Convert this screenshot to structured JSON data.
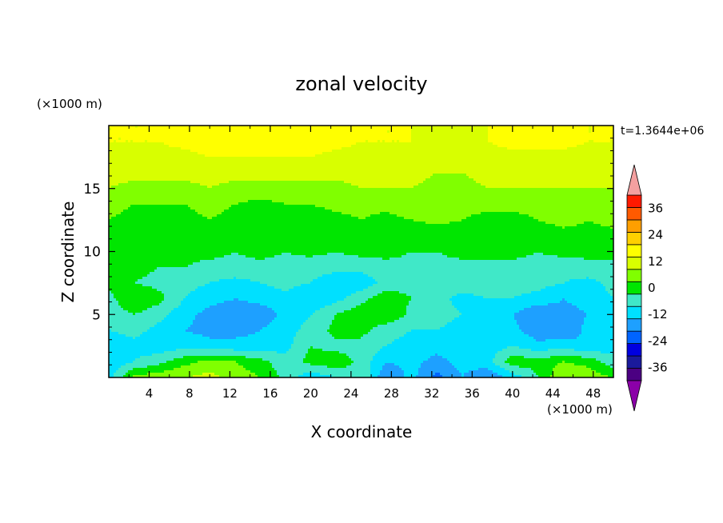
{
  "chart_data": {
    "type": "heatmap",
    "title": "zonal velocity",
    "xlabel": "X coordinate",
    "ylabel": "Z coordinate",
    "x_unit_label": "(×1000 m)",
    "y_unit_label": "(×1000 m)",
    "time_label": "t=1.3644e+06",
    "xlim": [
      0,
      50
    ],
    "ylim": [
      0,
      20
    ],
    "xticks": [
      4,
      8,
      12,
      16,
      20,
      24,
      28,
      32,
      36,
      40,
      44,
      48
    ],
    "yticks": [
      5,
      10,
      15
    ],
    "colorbar": {
      "levels": [
        -42,
        -36,
        -30,
        -24,
        -18,
        -12,
        -6,
        0,
        6,
        12,
        18,
        24,
        30,
        36,
        42
      ],
      "tick_labels": [
        "-36",
        "-24",
        "-12",
        "0",
        "12",
        "24",
        "36"
      ],
      "tick_values": [
        -36,
        -24,
        -12,
        0,
        12,
        24,
        36
      ],
      "colors": [
        "#4b0082",
        "#1a1a9c",
        "#0000e0",
        "#0064ff",
        "#1ea0ff",
        "#00e0ff",
        "#40e8c8",
        "#00e600",
        "#80ff00",
        "#d8ff00",
        "#ffff00",
        "#ffd000",
        "#ff9f00",
        "#ff5a00",
        "#ff1a00"
      ],
      "under_color": "#8b00a8",
      "over_color": "#f4a0a0"
    },
    "grid": {
      "x": [
        0,
        2.5,
        5,
        7.5,
        10,
        12.5,
        15,
        17.5,
        20,
        22.5,
        25,
        27.5,
        30,
        32.5,
        35,
        37.5,
        40,
        42.5,
        45,
        47.5,
        50
      ],
      "z": [
        0,
        1.25,
        2.5,
        3.75,
        5,
        6.25,
        7.5,
        8.75,
        10,
        11.25,
        12.5,
        13.75,
        15,
        16.25,
        17.5,
        18.75,
        20
      ],
      "values": [
        [
          -8,
          8,
          10,
          12,
          14,
          10,
          6,
          -2,
          -10,
          -6,
          0,
          -18,
          -10,
          -20,
          -12,
          -18,
          -10,
          0,
          12,
          10,
          6
        ],
        [
          -12,
          -6,
          -2,
          4,
          8,
          6,
          2,
          -4,
          2,
          4,
          -2,
          -12,
          -10,
          -14,
          -10,
          -8,
          4,
          2,
          6,
          4,
          -4
        ],
        [
          -10,
          -8,
          -10,
          -8,
          -10,
          -10,
          -10,
          -8,
          0,
          -2,
          -2,
          -6,
          -8,
          -10,
          -8,
          -10,
          -6,
          -10,
          -8,
          -12,
          -8
        ],
        [
          -6,
          -4,
          -8,
          -12,
          -14,
          -14,
          -12,
          -8,
          -4,
          2,
          2,
          -4,
          -6,
          -6,
          -8,
          -8,
          -10,
          -16,
          -18,
          -10,
          -8
        ],
        [
          -4,
          0,
          -4,
          -10,
          -14,
          -16,
          -16,
          -10,
          -6,
          0,
          4,
          6,
          -2,
          -4,
          -6,
          -8,
          -12,
          -18,
          -14,
          -12,
          -6
        ],
        [
          -2,
          6,
          2,
          -6,
          -10,
          -12,
          -10,
          -8,
          -12,
          -8,
          -2,
          4,
          0,
          -4,
          -8,
          -6,
          -6,
          -8,
          -12,
          -10,
          -6
        ],
        [
          2,
          0,
          -2,
          -4,
          -6,
          -8,
          -6,
          -4,
          -6,
          -10,
          -10,
          -4,
          -2,
          -4,
          -2,
          -4,
          -4,
          -4,
          -6,
          -8,
          -4
        ],
        [
          0,
          2,
          0,
          0,
          -2,
          -2,
          -2,
          -2,
          -4,
          -4,
          -4,
          -2,
          -2,
          -2,
          -2,
          -2,
          -2,
          -2,
          -4,
          -2,
          -2
        ],
        [
          2,
          2,
          0,
          2,
          2,
          0,
          2,
          0,
          2,
          0,
          2,
          2,
          0,
          0,
          2,
          2,
          2,
          0,
          2,
          2,
          2
        ],
        [
          4,
          2,
          4,
          2,
          0,
          2,
          4,
          2,
          4,
          2,
          2,
          4,
          2,
          0,
          2,
          2,
          4,
          2,
          4,
          4,
          4
        ],
        [
          6,
          4,
          2,
          4,
          6,
          4,
          2,
          4,
          2,
          4,
          6,
          4,
          6,
          8,
          6,
          4,
          4,
          6,
          8,
          6,
          8
        ],
        [
          8,
          6,
          6,
          6,
          8,
          6,
          4,
          6,
          6,
          8,
          8,
          8,
          10,
          10,
          8,
          8,
          8,
          8,
          10,
          10,
          10
        ],
        [
          12,
          10,
          10,
          10,
          12,
          10,
          10,
          10,
          10,
          10,
          12,
          12,
          12,
          10,
          10,
          12,
          12,
          12,
          12,
          12,
          12
        ],
        [
          14,
          14,
          14,
          14,
          14,
          14,
          14,
          14,
          14,
          14,
          14,
          14,
          14,
          12,
          12,
          14,
          14,
          14,
          14,
          14,
          14
        ],
        [
          16,
          16,
          16,
          16,
          18,
          18,
          18,
          18,
          18,
          16,
          16,
          16,
          16,
          14,
          14,
          16,
          16,
          16,
          16,
          16,
          16
        ],
        [
          18,
          18,
          18,
          20,
          22,
          22,
          22,
          22,
          22,
          20,
          18,
          18,
          18,
          16,
          16,
          18,
          20,
          20,
          20,
          18,
          18
        ],
        [
          18,
          18,
          18,
          20,
          22,
          22,
          22,
          22,
          22,
          20,
          18,
          18,
          18,
          16,
          16,
          18,
          20,
          22,
          20,
          18,
          18
        ]
      ]
    }
  }
}
